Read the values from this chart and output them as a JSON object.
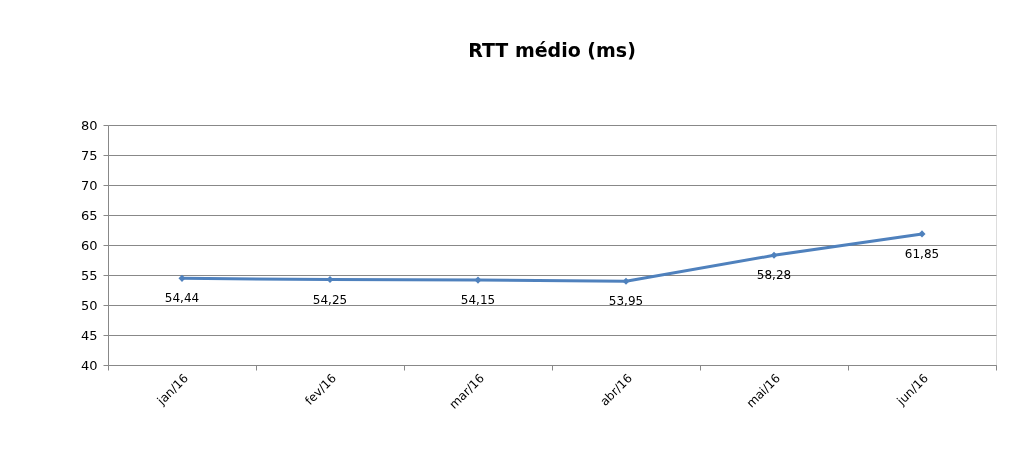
{
  "chart_data": {
    "type": "line",
    "title": "RTT médio (ms)",
    "categories": [
      "jan/16",
      "fev/16",
      "mar/16",
      "abr/16",
      "mai/16",
      "jun/16"
    ],
    "series": [
      {
        "color": "#4f81bd",
        "values": [
          54.44,
          54.25,
          54.15,
          53.95,
          58.28,
          61.85
        ],
        "value_labels": [
          "54,44",
          "54,25",
          "54,15",
          "53,95",
          "58,28",
          "61,85"
        ]
      }
    ],
    "ylim": [
      40,
      80
    ],
    "yticks": [
      40,
      45,
      50,
      55,
      60,
      65,
      70,
      75,
      80
    ],
    "grid": "y",
    "marker": "diamond",
    "line_style": "solid"
  }
}
